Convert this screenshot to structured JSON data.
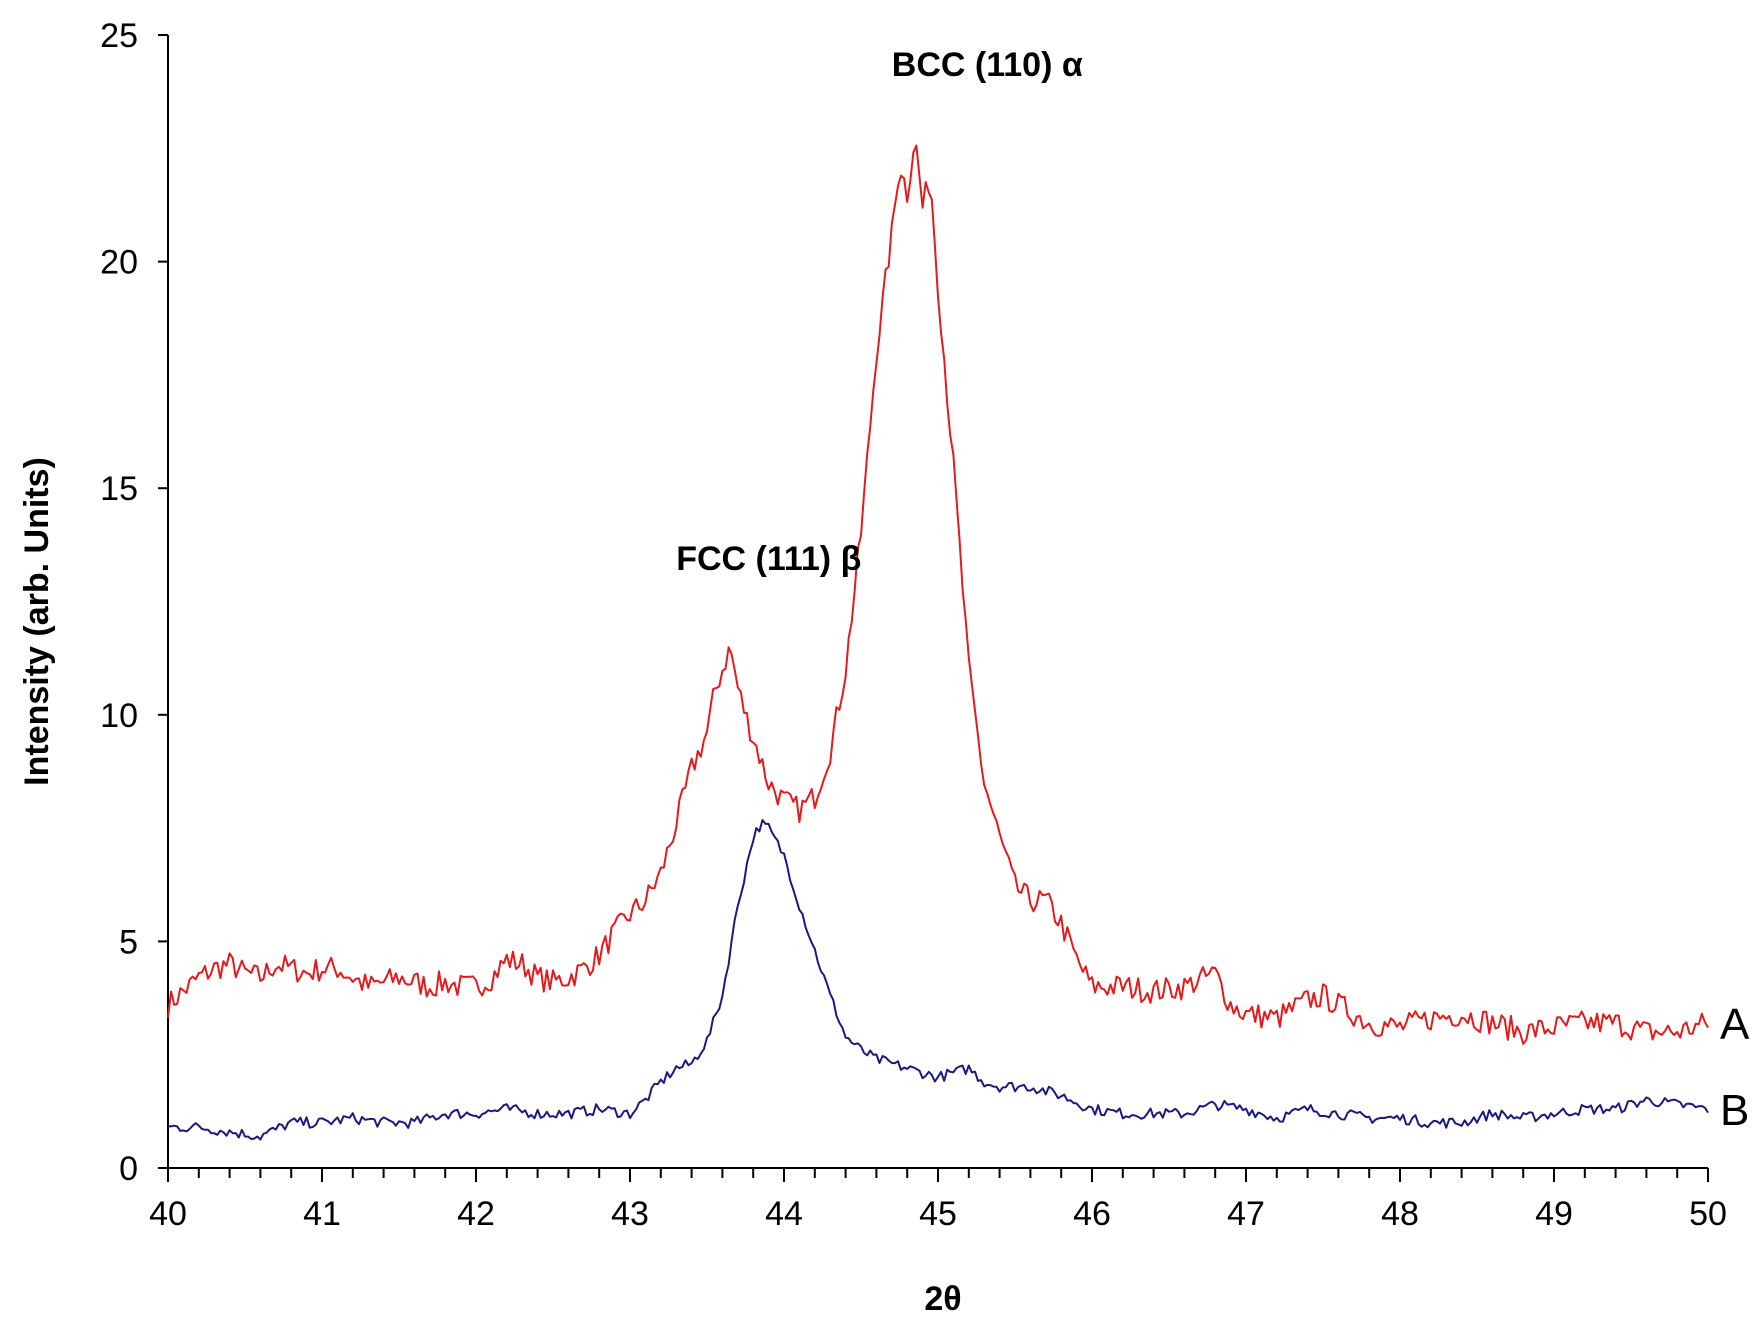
{
  "chart_data": {
    "type": "line",
    "xlabel": "2θ",
    "ylabel": "Intensity (arb. Units)",
    "xlim": [
      40,
      50
    ],
    "ylim": [
      0,
      25
    ],
    "x_ticks": [
      40,
      41,
      42,
      43,
      44,
      45,
      46,
      47,
      48,
      49,
      50
    ],
    "y_ticks": [
      0,
      5,
      10,
      15,
      20,
      25
    ],
    "x_tick_labels": [
      "40",
      "41",
      "42",
      "43",
      "44",
      "45",
      "46",
      "47",
      "48",
      "49",
      "50"
    ],
    "y_tick_labels": [
      "0",
      "5",
      "10",
      "15",
      "20",
      "25"
    ],
    "grid": false,
    "annotations": [
      {
        "text": "FCC (111) β",
        "x": 43.3,
        "y": 13.2
      },
      {
        "text": "BCC (110) α",
        "x": 44.7,
        "y": 24.1
      }
    ],
    "series": [
      {
        "name": "A",
        "color": "#e41a1c",
        "points": [
          [
            40.0,
            3.6
          ],
          [
            40.1,
            3.9
          ],
          [
            40.2,
            4.2
          ],
          [
            40.3,
            4.4
          ],
          [
            40.4,
            4.5
          ],
          [
            40.5,
            4.3
          ],
          [
            40.6,
            4.2
          ],
          [
            40.7,
            4.5
          ],
          [
            40.8,
            4.4
          ],
          [
            40.9,
            4.3
          ],
          [
            41.0,
            4.4
          ],
          [
            41.1,
            4.4
          ],
          [
            41.2,
            4.2
          ],
          [
            41.3,
            4.0
          ],
          [
            41.4,
            4.1
          ],
          [
            41.5,
            4.2
          ],
          [
            41.6,
            4.1
          ],
          [
            41.7,
            4.0
          ],
          [
            41.8,
            4.1
          ],
          [
            41.9,
            4.0
          ],
          [
            42.0,
            4.0
          ],
          [
            42.1,
            4.2
          ],
          [
            42.2,
            4.6
          ],
          [
            42.3,
            4.5
          ],
          [
            42.4,
            4.2
          ],
          [
            42.5,
            4.1
          ],
          [
            42.6,
            4.2
          ],
          [
            42.7,
            4.4
          ],
          [
            42.8,
            4.7
          ],
          [
            42.9,
            5.2
          ],
          [
            43.0,
            5.6
          ],
          [
            43.1,
            5.9
          ],
          [
            43.2,
            6.5
          ],
          [
            43.3,
            7.6
          ],
          [
            43.4,
            8.8
          ],
          [
            43.5,
            9.6
          ],
          [
            43.55,
            10.5
          ],
          [
            43.6,
            11.0
          ],
          [
            43.65,
            11.5
          ],
          [
            43.7,
            10.6
          ],
          [
            43.75,
            10.0
          ],
          [
            43.8,
            9.5
          ],
          [
            43.85,
            9.0
          ],
          [
            43.9,
            8.5
          ],
          [
            44.0,
            8.1
          ],
          [
            44.1,
            7.9
          ],
          [
            44.2,
            8.2
          ],
          [
            44.3,
            9.2
          ],
          [
            44.4,
            11.0
          ],
          [
            44.5,
            14.0
          ],
          [
            44.6,
            18.0
          ],
          [
            44.7,
            20.6
          ],
          [
            44.75,
            22.2
          ],
          [
            44.8,
            21.5
          ],
          [
            44.85,
            22.8
          ],
          [
            44.9,
            21.2
          ],
          [
            44.95,
            21.9
          ],
          [
            45.0,
            19.5
          ],
          [
            45.1,
            15.5
          ],
          [
            45.2,
            11.0
          ],
          [
            45.3,
            8.5
          ],
          [
            45.4,
            7.3
          ],
          [
            45.5,
            6.2
          ],
          [
            45.6,
            5.9
          ],
          [
            45.7,
            5.9
          ],
          [
            45.8,
            5.4
          ],
          [
            45.9,
            4.6
          ],
          [
            46.0,
            4.0
          ],
          [
            46.2,
            4.0
          ],
          [
            46.4,
            3.9
          ],
          [
            46.6,
            4.0
          ],
          [
            46.8,
            4.3
          ],
          [
            46.9,
            3.6
          ],
          [
            47.0,
            3.4
          ],
          [
            47.2,
            3.3
          ],
          [
            47.4,
            3.7
          ],
          [
            47.5,
            3.8
          ],
          [
            47.6,
            3.6
          ],
          [
            47.8,
            3.2
          ],
          [
            48.0,
            3.1
          ],
          [
            48.2,
            3.3
          ],
          [
            48.4,
            3.4
          ],
          [
            48.6,
            3.2
          ],
          [
            48.8,
            3.0
          ],
          [
            49.0,
            3.1
          ],
          [
            49.2,
            3.2
          ],
          [
            49.4,
            3.2
          ],
          [
            49.6,
            3.0
          ],
          [
            49.8,
            3.0
          ],
          [
            50.0,
            3.2
          ]
        ]
      },
      {
        "name": "B",
        "color": "#1a1a80",
        "points": [
          [
            40.0,
            0.9
          ],
          [
            40.2,
            0.9
          ],
          [
            40.4,
            0.8
          ],
          [
            40.6,
            0.7
          ],
          [
            40.8,
            1.0
          ],
          [
            41.0,
            1.0
          ],
          [
            41.2,
            1.1
          ],
          [
            41.4,
            1.0
          ],
          [
            41.6,
            1.0
          ],
          [
            41.8,
            1.2
          ],
          [
            42.0,
            1.2
          ],
          [
            42.2,
            1.3
          ],
          [
            42.4,
            1.2
          ],
          [
            42.6,
            1.2
          ],
          [
            42.8,
            1.3
          ],
          [
            43.0,
            1.2
          ],
          [
            43.1,
            1.5
          ],
          [
            43.2,
            1.9
          ],
          [
            43.3,
            2.2
          ],
          [
            43.4,
            2.3
          ],
          [
            43.5,
            2.8
          ],
          [
            43.6,
            3.8
          ],
          [
            43.7,
            5.8
          ],
          [
            43.8,
            7.3
          ],
          [
            43.85,
            7.6
          ],
          [
            43.9,
            7.5
          ],
          [
            44.0,
            6.9
          ],
          [
            44.1,
            5.8
          ],
          [
            44.2,
            4.8
          ],
          [
            44.3,
            3.8
          ],
          [
            44.4,
            2.9
          ],
          [
            44.5,
            2.6
          ],
          [
            44.6,
            2.4
          ],
          [
            44.8,
            2.2
          ],
          [
            45.0,
            2.0
          ],
          [
            45.2,
            2.2
          ],
          [
            45.3,
            1.9
          ],
          [
            45.4,
            1.8
          ],
          [
            45.6,
            1.8
          ],
          [
            45.8,
            1.6
          ],
          [
            46.0,
            1.3
          ],
          [
            46.2,
            1.2
          ],
          [
            46.4,
            1.2
          ],
          [
            46.6,
            1.2
          ],
          [
            46.8,
            1.4
          ],
          [
            47.0,
            1.3
          ],
          [
            47.2,
            1.1
          ],
          [
            47.4,
            1.3
          ],
          [
            47.6,
            1.2
          ],
          [
            47.8,
            1.1
          ],
          [
            48.0,
            1.1
          ],
          [
            48.2,
            1.0
          ],
          [
            48.4,
            1.0
          ],
          [
            48.6,
            1.2
          ],
          [
            48.8,
            1.1
          ],
          [
            49.0,
            1.2
          ],
          [
            49.2,
            1.3
          ],
          [
            49.4,
            1.3
          ],
          [
            49.6,
            1.5
          ],
          [
            49.8,
            1.4
          ],
          [
            50.0,
            1.3
          ]
        ]
      }
    ]
  }
}
